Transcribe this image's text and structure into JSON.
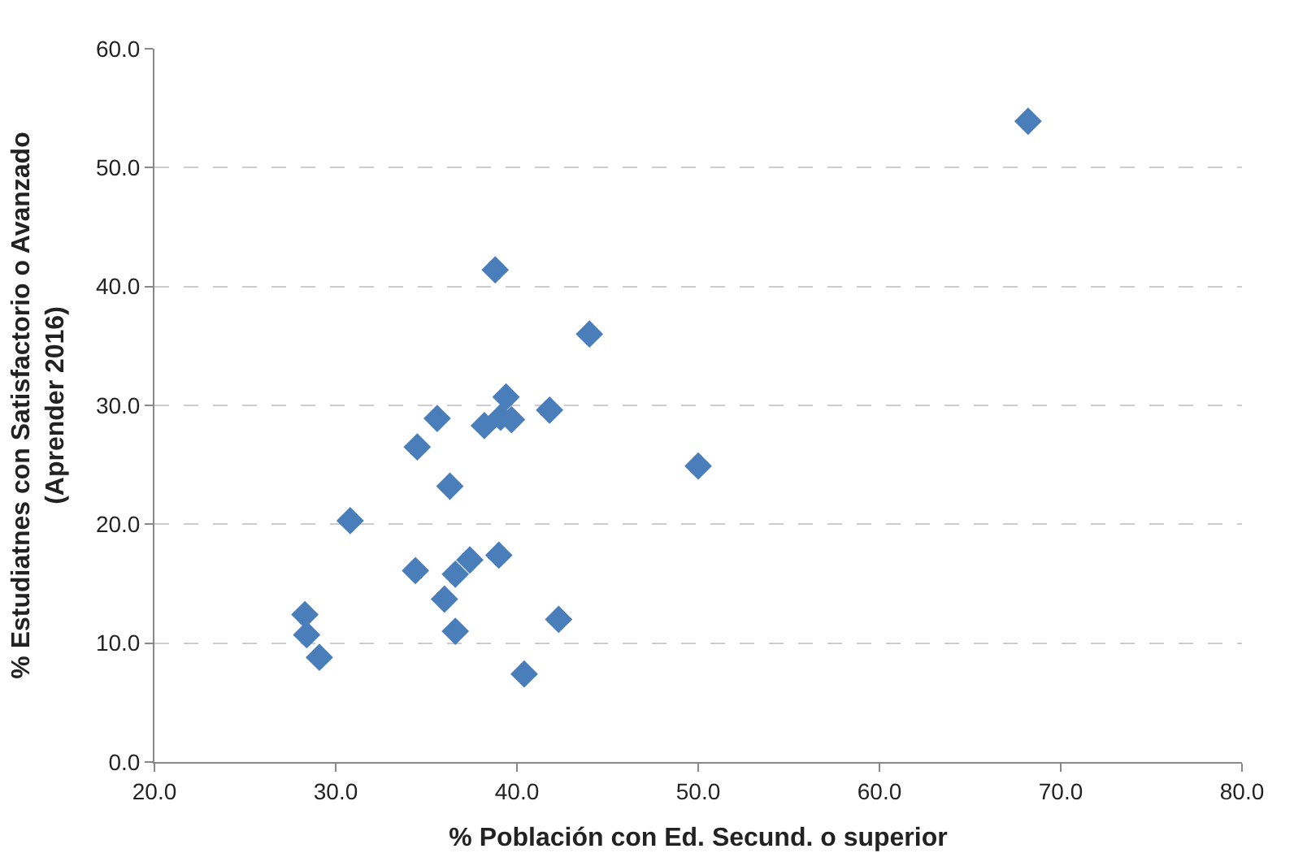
{
  "chart_data": {
    "type": "scatter",
    "xlabel": "% Población con Ed. Secund. o superior",
    "ylabel": "% Estudiatnes con Satisfactorio o Avanzado\n(Aprender 2016)",
    "x": [
      38.8,
      44.0,
      39.4,
      41.8,
      35.6,
      38.2,
      39.1,
      39.7,
      34.5,
      36.3,
      30.8,
      34.4,
      37.4,
      36.6,
      39.0,
      36.0,
      28.3,
      28.4,
      29.1,
      36.6,
      42.3,
      40.4,
      50.0,
      68.2
    ],
    "series": [
      {
        "color": "#4a7ebb",
        "values": [
          41.4,
          36.0,
          30.7,
          29.6,
          28.9,
          28.3,
          29.0,
          28.8,
          26.5,
          23.2,
          20.3,
          16.1,
          17.0,
          15.8,
          17.4,
          13.7,
          12.4,
          10.7,
          8.8,
          11.0,
          12.0,
          7.4,
          24.9,
          53.9
        ]
      }
    ],
    "marker": "diamond",
    "grid": "y",
    "xlim": [
      20,
      80
    ],
    "ylim": [
      0,
      60
    ],
    "xticks": [
      {
        "value": 20,
        "label": "20.0"
      },
      {
        "value": 30,
        "label": "30.0"
      },
      {
        "value": 40,
        "label": "40.0"
      },
      {
        "value": 50,
        "label": "50.0"
      },
      {
        "value": 60,
        "label": "60.0"
      },
      {
        "value": 70,
        "label": "70.0"
      },
      {
        "value": 80,
        "label": "80.0"
      }
    ],
    "yticks": [
      {
        "value": 0,
        "label": "0.0"
      },
      {
        "value": 10,
        "label": "10.0"
      },
      {
        "value": 20,
        "label": "20.0"
      },
      {
        "value": 30,
        "label": "30.0"
      },
      {
        "value": 40,
        "label": "40.0"
      },
      {
        "value": 50,
        "label": "50.0"
      },
      {
        "value": 60,
        "label": "60.0"
      }
    ]
  }
}
